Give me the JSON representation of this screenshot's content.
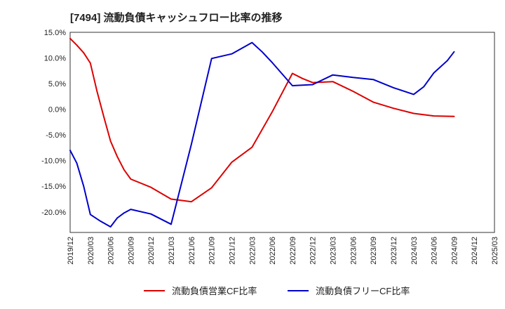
{
  "chart_data": {
    "type": "line",
    "title": "[7494]  流動負債キャッシュフロー比率の推移",
    "xlabel": "",
    "ylabel": "",
    "ylim": [
      -24,
      15
    ],
    "yticks": [
      15,
      10,
      5,
      0,
      -5,
      -10,
      -15,
      -20
    ],
    "ytick_labels": [
      "15.0%",
      "10.0%",
      "5.0%",
      "0.0%",
      "-5.0%",
      "-10.0%",
      "-15.0%",
      "-20.0%"
    ],
    "x_tick_labels": [
      "2019/12",
      "2020/03",
      "2020/06",
      "2020/09",
      "2020/12",
      "2021/03",
      "2021/06",
      "2021/09",
      "2021/12",
      "2022/03",
      "2022/06",
      "2022/09",
      "2022/12",
      "2023/03",
      "2023/06",
      "2023/09",
      "2023/12",
      "2024/03",
      "2024/06",
      "2024/09",
      "2024/12",
      "2025/03"
    ],
    "grid": true,
    "legend_position": "bottom",
    "series": [
      {
        "name": "流動負債営業CF比率",
        "color": "#dd0000",
        "points": [
          [
            0,
            13.8
          ],
          [
            0.33,
            12.5
          ],
          [
            0.67,
            11.0
          ],
          [
            1,
            9.0
          ],
          [
            1.33,
            3.5
          ],
          [
            1.67,
            -1.5
          ],
          [
            2,
            -6.2
          ],
          [
            2.33,
            -9.2
          ],
          [
            2.67,
            -11.8
          ],
          [
            3,
            -13.6
          ],
          [
            4,
            -15.2
          ],
          [
            5,
            -17.5
          ],
          [
            6,
            -18.0
          ],
          [
            7,
            -15.3
          ],
          [
            8,
            -10.3
          ],
          [
            9,
            -7.4
          ],
          [
            10,
            -0.5
          ],
          [
            11,
            7.0
          ],
          [
            11.5,
            6.0
          ],
          [
            12,
            5.2
          ],
          [
            13,
            5.4
          ],
          [
            14,
            3.5
          ],
          [
            15,
            1.4
          ],
          [
            16,
            0.2
          ],
          [
            17,
            -0.8
          ],
          [
            18,
            -1.3
          ],
          [
            19,
            -1.4
          ]
        ]
      },
      {
        "name": "流動負債フリーCF比率",
        "color": "#0000cc",
        "points": [
          [
            0,
            -8.0
          ],
          [
            0.33,
            -10.5
          ],
          [
            0.67,
            -15.0
          ],
          [
            1,
            -20.5
          ],
          [
            1.5,
            -21.8
          ],
          [
            2,
            -22.9
          ],
          [
            2.33,
            -21.2
          ],
          [
            2.67,
            -20.2
          ],
          [
            3,
            -19.5
          ],
          [
            4,
            -20.4
          ],
          [
            5,
            -22.4
          ],
          [
            6,
            -6.8
          ],
          [
            7,
            9.9
          ],
          [
            8,
            10.8
          ],
          [
            9,
            13.0
          ],
          [
            9.5,
            11.2
          ],
          [
            10,
            9.1
          ],
          [
            11,
            4.6
          ],
          [
            12,
            4.8
          ],
          [
            13,
            6.7
          ],
          [
            14,
            6.2
          ],
          [
            15,
            5.8
          ],
          [
            16,
            4.2
          ],
          [
            17,
            2.9
          ],
          [
            17.5,
            4.4
          ],
          [
            18,
            7.1
          ],
          [
            18.67,
            9.5
          ],
          [
            19,
            11.2
          ]
        ]
      }
    ]
  }
}
